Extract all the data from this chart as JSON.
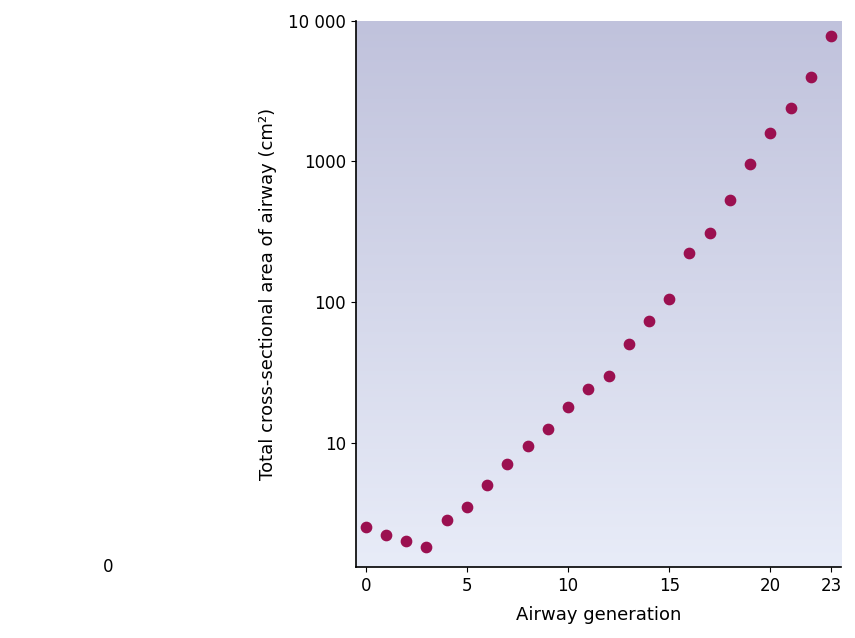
{
  "generations": [
    0,
    1,
    2,
    3,
    4,
    5,
    6,
    7,
    8,
    9,
    10,
    11,
    12,
    13,
    14,
    15,
    16,
    17,
    18,
    19,
    20,
    21,
    22,
    23
  ],
  "values": [
    2.5,
    2.2,
    2.0,
    1.8,
    2.8,
    3.5,
    5.0,
    7.0,
    9.5,
    12.5,
    18.0,
    24.0,
    30.0,
    50.0,
    73.0,
    105.0,
    225.0,
    310.0,
    530.0,
    960.0,
    1600.0,
    2400.0,
    4000.0,
    7800.0
  ],
  "dot_color": "#9B1050",
  "dot_size": 55,
  "ylabel": "Total cross-sectional area of airway (cm²)",
  "xlabel": "Airway generation",
  "xlim": [
    -0.5,
    23.5
  ],
  "ylim_log": [
    1.3,
    10000
  ],
  "yticks": [
    10,
    100,
    1000,
    10000
  ],
  "ytick_labels": [
    "10",
    "100",
    "1000",
    "10 000"
  ],
  "y_zero_label": "0",
  "xticks": [
    0,
    5,
    10,
    15,
    20,
    23
  ],
  "bg_top_color": "#C0C2DC",
  "bg_bottom_color": "#E8ECF8",
  "spine_color": "#000000",
  "label_fontsize": 13,
  "tick_fontsize": 12
}
